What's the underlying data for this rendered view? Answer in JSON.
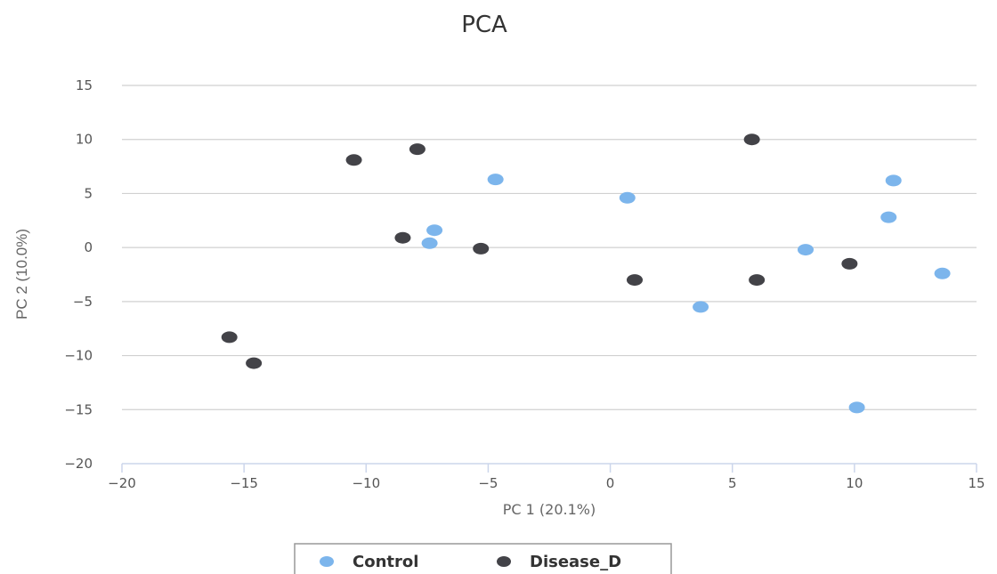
{
  "chart_data": {
    "type": "scatter",
    "title": "PCA",
    "xlabel": "PC 1 (20.1%)",
    "ylabel": "PC 2 (10.0%)",
    "xlim": [
      -20,
      15
    ],
    "ylim": [
      -20,
      15
    ],
    "x_ticks": [
      "−20",
      "−15",
      "−10",
      "−5",
      "0",
      "5",
      "10",
      "15"
    ],
    "y_ticks": [
      "15",
      "10",
      "5",
      "0",
      "−5",
      "−10",
      "−15",
      "−20"
    ],
    "grid": "horizontal",
    "legend_position": "bottom",
    "series": [
      {
        "name": "Control",
        "color": "#7cb5ec",
        "points": [
          {
            "x": -4.7,
            "y": 6.3
          },
          {
            "x": -7.2,
            "y": 1.6
          },
          {
            "x": -7.4,
            "y": 0.4
          },
          {
            "x": 0.7,
            "y": 4.6
          },
          {
            "x": 3.7,
            "y": -5.5
          },
          {
            "x": 8.0,
            "y": -0.2
          },
          {
            "x": 11.4,
            "y": 2.8
          },
          {
            "x": 11.6,
            "y": 6.2
          },
          {
            "x": 13.6,
            "y": -2.4
          },
          {
            "x": 10.1,
            "y": -14.8
          }
        ]
      },
      {
        "name": "Disease_D",
        "color": "#434348",
        "points": [
          {
            "x": -10.5,
            "y": 8.1
          },
          {
            "x": -7.9,
            "y": 9.1
          },
          {
            "x": -8.5,
            "y": 0.9
          },
          {
            "x": -5.3,
            "y": -0.1
          },
          {
            "x": 5.8,
            "y": 10.0
          },
          {
            "x": 1.0,
            "y": -3.0
          },
          {
            "x": 6.0,
            "y": -3.0
          },
          {
            "x": 9.8,
            "y": -1.5
          },
          {
            "x": -15.6,
            "y": -8.3
          },
          {
            "x": -14.6,
            "y": -10.7
          }
        ]
      }
    ]
  }
}
